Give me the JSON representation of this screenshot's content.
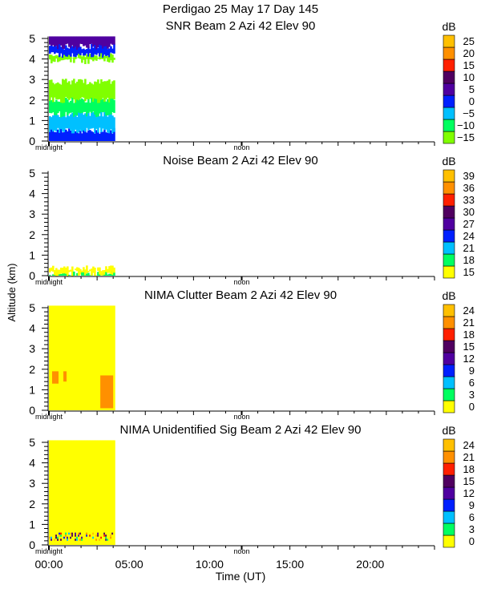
{
  "chart_data": {
    "type": "heatmap",
    "title": "Perdigao  25 May 17 Day 145",
    "ylabel": "Altitude (km)",
    "xlabel": "Time (UT)",
    "xlim": [
      0,
      24
    ],
    "ylim": [
      0,
      5
    ],
    "data_end_hour": 4.1,
    "x_ticks": [
      {
        "h": 0,
        "label": "00:00"
      },
      {
        "h": 5,
        "label": "05:00"
      },
      {
        "h": 10,
        "label": "10:00"
      },
      {
        "h": 15,
        "label": "15:00"
      },
      {
        "h": 20,
        "label": "20:00"
      }
    ],
    "y_ticks": [
      0,
      1,
      2,
      3,
      4,
      5
    ],
    "day_markers": [
      {
        "h": 0,
        "label": "midnight"
      },
      {
        "h": 12,
        "label": "noon"
      }
    ],
    "panels": [
      {
        "title": "SNR Beam 2 Azi  42 Elev 90",
        "unit": "dB",
        "levels": [
          -15,
          -10,
          -5,
          0,
          5,
          10,
          15,
          20,
          25
        ],
        "level_labels": [
          "−15",
          "−10",
          "−5",
          "0",
          "5",
          "10",
          "15",
          "20",
          "25"
        ],
        "colors": [
          "#80ff00",
          "#00ff60",
          "#00c0ff",
          "#0020ff",
          "#5000a0",
          "#500060",
          "#ff2000",
          "#ff9000",
          "#ffc000"
        ],
        "profile": [
          [
            0,
            0.5,
            0
          ],
          [
            0.5,
            1.3,
            -5
          ],
          [
            1.3,
            2.0,
            -10
          ],
          [
            2.0,
            2.9,
            -15
          ],
          [
            2.9,
            3.9,
            null
          ],
          [
            3.9,
            4.2,
            -15
          ],
          [
            4.2,
            4.6,
            0
          ],
          [
            4.6,
            5.1,
            5
          ]
        ]
      },
      {
        "title": "Noise Beam 2 Azi  42 Elev 90",
        "unit": "dB",
        "levels": [
          15,
          18,
          21,
          24,
          27,
          30,
          33,
          36,
          39
        ],
        "level_labels": [
          "15",
          "18",
          "21",
          "24",
          "27",
          "30",
          "33",
          "36",
          "39"
        ],
        "colors": [
          "#ffff00",
          "#00ff60",
          "#00c0ff",
          "#0020ff",
          "#5000a0",
          "#500060",
          "#ff2000",
          "#ff9000",
          "#ffc000"
        ],
        "profile": [
          [
            0,
            0.12,
            18
          ],
          [
            0.12,
            0.35,
            15
          ]
        ]
      },
      {
        "title": "NIMA Clutter Beam 2 Azi  42 Elev 90",
        "unit": "dB",
        "levels": [
          0,
          3,
          6,
          9,
          12,
          15,
          18,
          21,
          24
        ],
        "level_labels": [
          "0",
          "3",
          "6",
          "9",
          "12",
          "15",
          "18",
          "21",
          "24"
        ],
        "colors": [
          "#ffff00",
          "#00ff60",
          "#00c0ff",
          "#0020ff",
          "#5000a0",
          "#500060",
          "#ff2000",
          "#ff9000",
          "#ffc000"
        ],
        "profile": [
          [
            0,
            5.1,
            0
          ]
        ],
        "patches": [
          [
            0.2,
            0.6,
            1.3,
            1.9,
            21
          ],
          [
            3.2,
            4.0,
            0.1,
            1.7,
            21
          ],
          [
            0.9,
            1.1,
            1.4,
            1.9,
            21
          ]
        ]
      },
      {
        "title": "NIMA Unidentified Sig Beam 2 Azi  42 Elev 90",
        "unit": "dB",
        "levels": [
          0,
          3,
          6,
          9,
          12,
          15,
          18,
          21,
          24
        ],
        "level_labels": [
          "0",
          "3",
          "6",
          "9",
          "12",
          "15",
          "18",
          "21",
          "24"
        ],
        "colors": [
          "#ffff00",
          "#00ff60",
          "#00c0ff",
          "#0020ff",
          "#5000a0",
          "#500060",
          "#ff2000",
          "#ff9000",
          "#ffc000"
        ],
        "profile": [
          [
            0,
            5.1,
            0
          ]
        ],
        "speckle": [
          0.2,
          0.6
        ]
      }
    ]
  }
}
